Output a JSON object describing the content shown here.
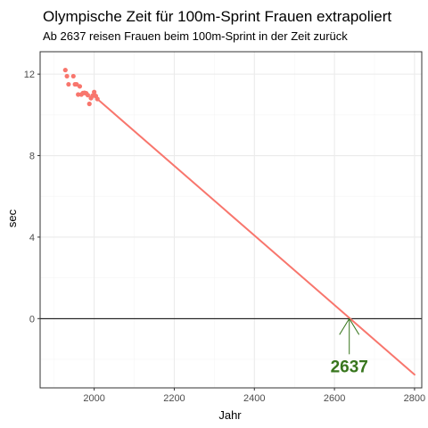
{
  "colors": {
    "series": "#f8766d",
    "annotation": "#38761d",
    "grid_major": "#ebebeb",
    "grid_minor": "#f5f5f5",
    "panel_border": "#333333",
    "zero_line": "#000000"
  },
  "chart_data": {
    "type": "scatter",
    "title": "Olympische Zeit für 100m-Sprint Frauen extrapoliert",
    "subtitle": "Ab 2637 reisen Frauen beim 100m-Sprint in der Zeit zurück",
    "xlabel": "Jahr",
    "ylabel": "sec",
    "xlim": [
      1865,
      2818
    ],
    "ylim": [
      -3.4,
      13.1
    ],
    "x_ticks": [
      2000,
      2200,
      2400,
      2600,
      2800
    ],
    "y_ticks": [
      0,
      4,
      8,
      12
    ],
    "x_tick_labels": [
      "2000",
      "2200",
      "2400",
      "2600",
      "2800"
    ],
    "y_tick_labels": [
      "0",
      "4",
      "8",
      "12"
    ],
    "grid": true,
    "reference_line": {
      "y": 0
    },
    "series": [
      {
        "type": "points",
        "x": [
          1928,
          1932,
          1936,
          1948,
          1952,
          1956,
          1960,
          1964,
          1968,
          1972,
          1976,
          1980,
          1984,
          1988,
          1992,
          1996,
          2000,
          2004,
          2008
        ],
        "y": [
          12.2,
          11.9,
          11.5,
          11.9,
          11.5,
          11.5,
          11.0,
          11.4,
          11.0,
          11.07,
          11.08,
          11.06,
          10.97,
          10.54,
          10.82,
          10.94,
          11.12,
          10.93,
          10.78
        ]
      },
      {
        "type": "line",
        "x": [
          1995,
          2800
        ],
        "y": [
          11.0,
          -2.75
        ]
      }
    ],
    "annotations": [
      {
        "text": "2637",
        "x": 2637,
        "y": 0
      }
    ]
  }
}
